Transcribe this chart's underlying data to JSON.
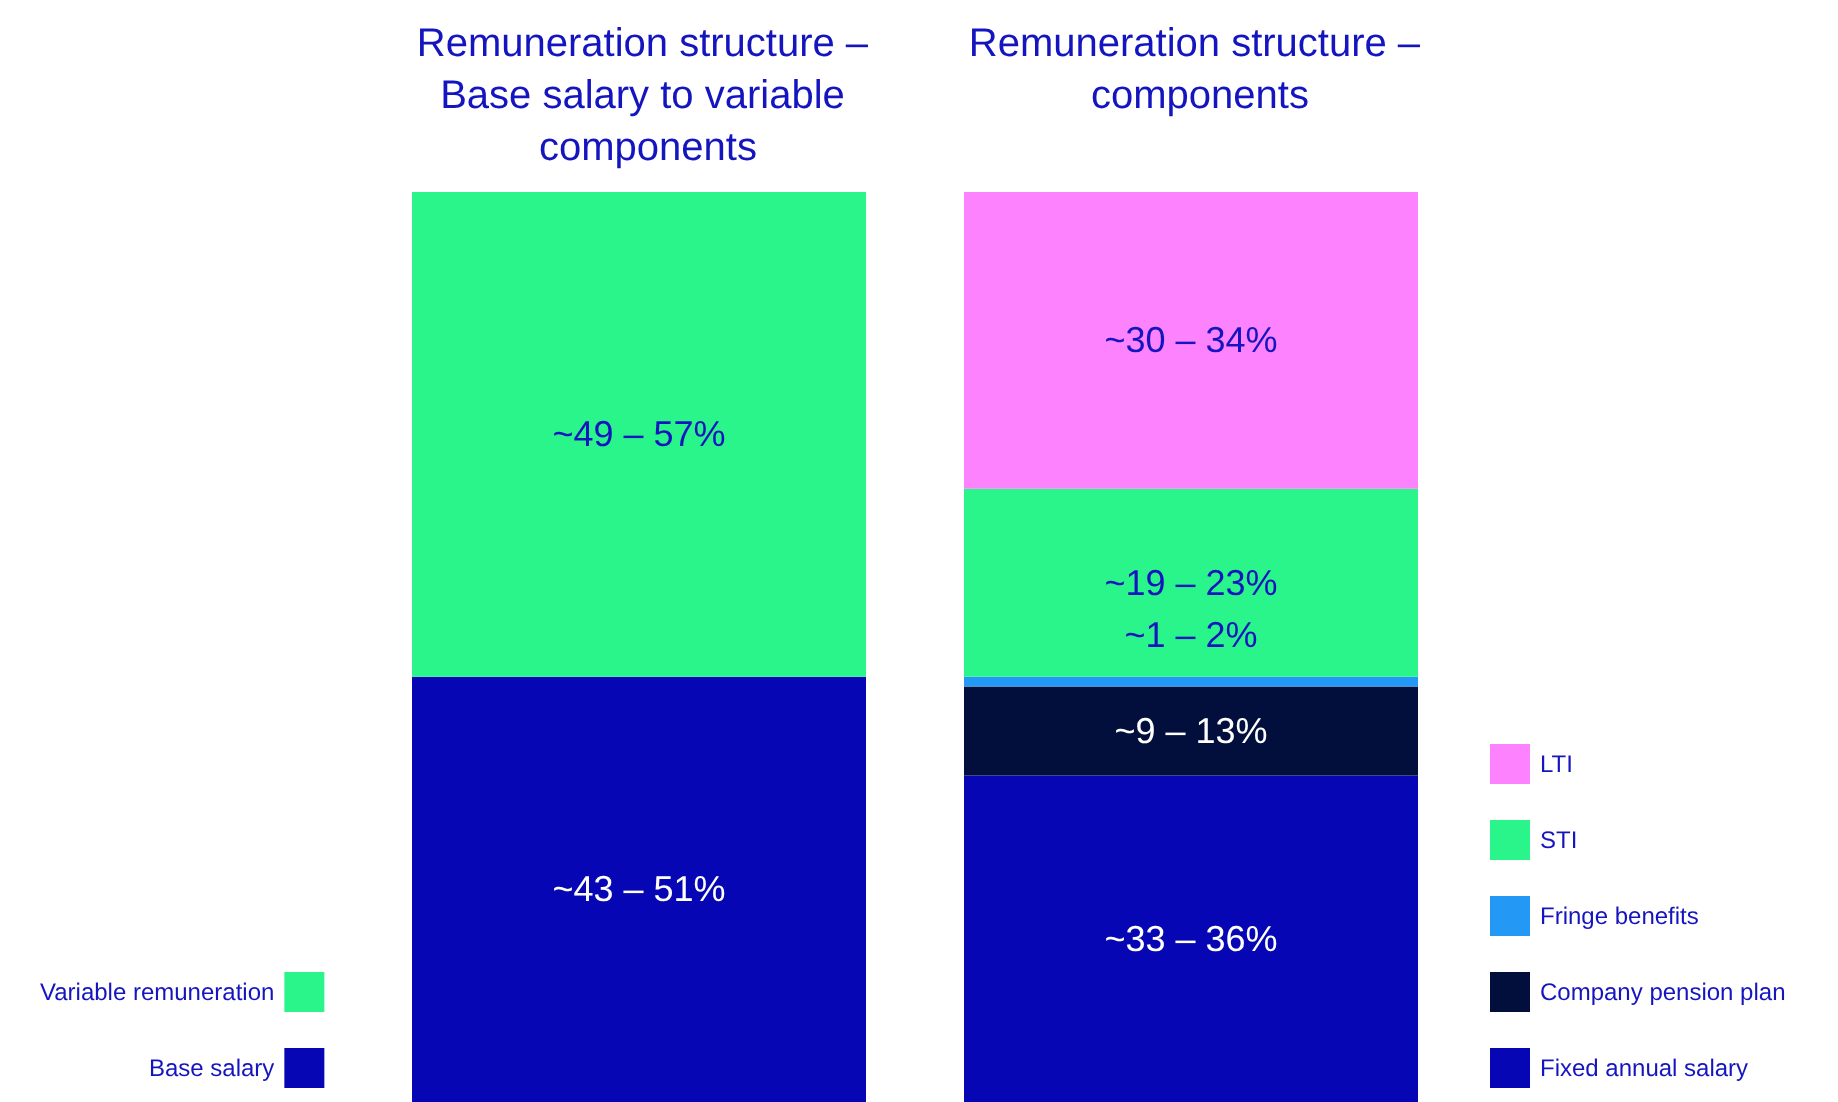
{
  "chart_data": [
    {
      "type": "bar",
      "title": "Remuneration structure – Base salary to variable components",
      "categories": [
        null
      ],
      "stacked": true,
      "tick_labels": false,
      "grid": false,
      "legend": "bottom left",
      "series": [
        {
          "name": "Base salary",
          "color": "#0606b4",
          "values": [
            43
          ],
          "value_labels": [
            "~43 – 51%"
          ]
        },
        {
          "name": "Variable remuneration",
          "color": "#2af58a",
          "values": [
            49
          ],
          "value_labels": [
            "~49 – 57%"
          ]
        }
      ]
    },
    {
      "type": "bar",
      "title": "Remuneration structure – components",
      "categories": [
        null
      ],
      "stacked": true,
      "tick_labels": false,
      "grid": false,
      "legend": "bottom right",
      "series": [
        {
          "name": "Fixed annual salary",
          "color": "#0606b4",
          "values": [
            33
          ],
          "value_labels": [
            "~33 – 36%"
          ]
        },
        {
          "name": "Company pension plan",
          "color": "#020f3c",
          "values": [
            9
          ],
          "value_labels": [
            "~9 – 13%"
          ]
        },
        {
          "name": "Fringe benefits",
          "color": "#2399f5",
          "values": [
            1
          ],
          "value_labels": [
            "~1 – 2%"
          ]
        },
        {
          "name": "STI",
          "color": "#2af58a",
          "values": [
            19
          ],
          "value_labels": [
            "~19 – 23%"
          ]
        },
        {
          "name": "LTI",
          "color": "#fd82fd",
          "values": [
            30
          ],
          "value_labels": [
            "~30 – 34%"
          ]
        }
      ]
    }
  ]
}
